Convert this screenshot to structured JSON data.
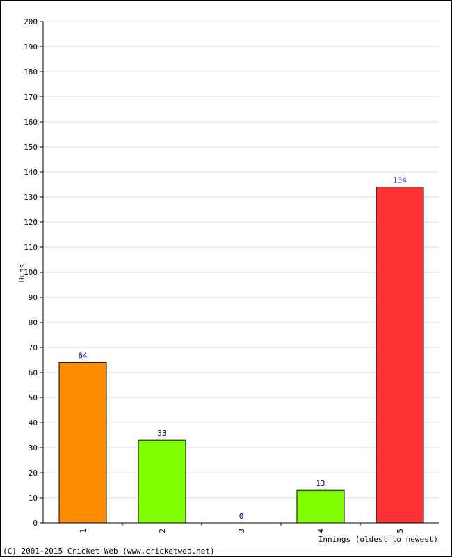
{
  "chart_data": {
    "type": "bar",
    "categories": [
      "1",
      "2",
      "3",
      "4",
      "5"
    ],
    "values": [
      64,
      33,
      0,
      13,
      134
    ],
    "bar_colors": [
      "#ff8c00",
      "#80ff00",
      "#80ff00",
      "#80ff00",
      "#ff3333"
    ],
    "data_labels": [
      "64",
      "33",
      "0",
      "13",
      "134"
    ],
    "xlabel": "Innings (oldest to newest)",
    "ylabel": "Runs",
    "ylim": [
      0,
      200
    ],
    "yticks": [
      0,
      10,
      20,
      30,
      40,
      50,
      60,
      70,
      80,
      90,
      100,
      110,
      120,
      130,
      140,
      150,
      160,
      170,
      180,
      190,
      200
    ],
    "grid": true,
    "data_label_color": "#000080",
    "grid_color": "#dddddd"
  },
  "footer": {
    "copyright": "(C) 2001-2015 Cricket Web (www.cricketweb.net)"
  }
}
